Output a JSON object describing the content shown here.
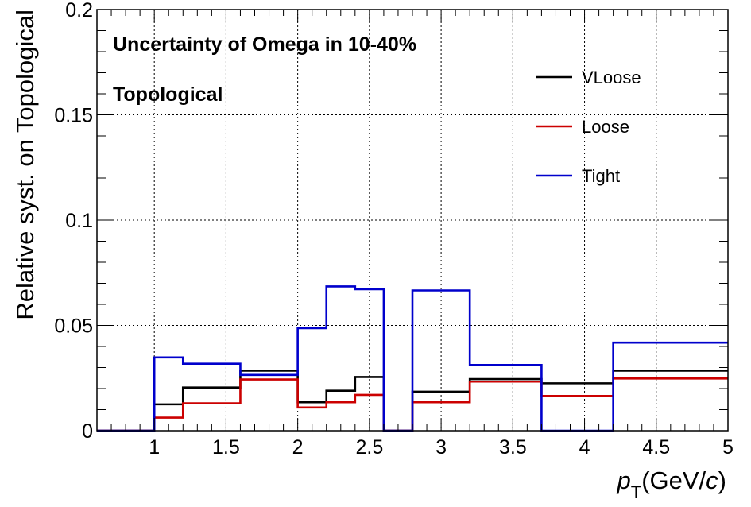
{
  "chart_data": {
    "type": "line",
    "style": "step-histogram",
    "xlabel_main": "p",
    "xlabel_sub": "T",
    "xlabel_rest": "(GeV/",
    "xlabel_c": "c",
    "xlabel_close": ")",
    "ylabel": "Relative syst. on Topological",
    "annotation_line1": "Uncertainty of Omega in 10-40%",
    "annotation_line2": "Topological",
    "xlim": [
      0.6,
      5.0
    ],
    "ylim": [
      0,
      0.2
    ],
    "x_ticks": [
      1,
      1.5,
      2,
      2.5,
      3,
      3.5,
      4,
      4.5,
      5
    ],
    "x_tick_labels": [
      "1",
      "1.5",
      "2",
      "2.5",
      "3",
      "3.5",
      "4",
      "4.5",
      "5"
    ],
    "y_ticks": [
      0,
      0.05,
      0.1,
      0.15,
      0.2
    ],
    "y_tick_labels": [
      "0",
      "0.05",
      "0.1",
      "0.15",
      "0.2"
    ],
    "grid": true,
    "legend_position": "top-right",
    "bin_edges": [
      0.6,
      1.0,
      1.2,
      1.6,
      2.0,
      2.2,
      2.4,
      2.6,
      2.8,
      3.2,
      3.7,
      4.2,
      5.0
    ],
    "series": [
      {
        "name": "VLoose",
        "color": "#000000",
        "values": [
          0,
          0.0125,
          0.0205,
          0.0285,
          0.0135,
          0.019,
          0.0255,
          0,
          0.0185,
          0.0245,
          0.0225,
          0.0285
        ]
      },
      {
        "name": "Loose",
        "color": "#cc0000",
        "values": [
          0,
          0.0062,
          0.013,
          0.0243,
          0.011,
          0.0135,
          0.017,
          0,
          0.0135,
          0.0233,
          0.0165,
          0.0248
        ]
      },
      {
        "name": "Tight",
        "color": "#0000cc",
        "values": [
          0,
          0.0348,
          0.0318,
          0.0265,
          0.0487,
          0.0685,
          0.0672,
          0,
          0.0666,
          0.0312,
          0,
          0.0418
        ]
      }
    ]
  }
}
